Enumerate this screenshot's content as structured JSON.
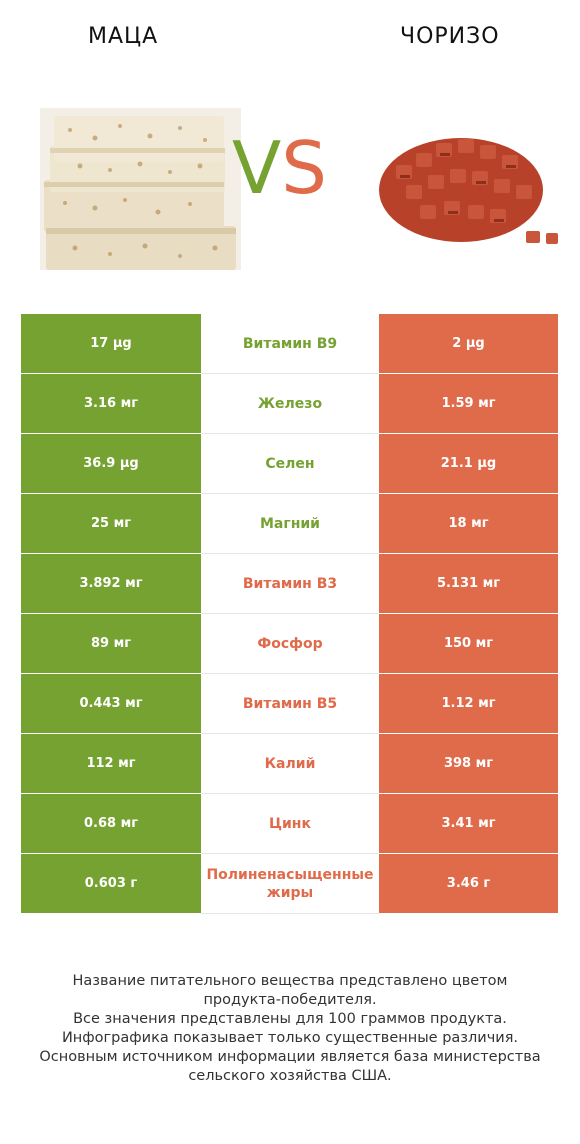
{
  "header": {
    "left_title": "МАЦА",
    "right_title": "ЧОРИЗО",
    "vs_v": "V",
    "vs_s": "S"
  },
  "colors": {
    "winner_left": "#76a232",
    "winner_right": "#e06b4b"
  },
  "rows": [
    {
      "left": "17 µg",
      "nutrient": "Витамин B9",
      "right": "2 µg",
      "winner": "left"
    },
    {
      "left": "3.16 мг",
      "nutrient": "Железо",
      "right": "1.59 мг",
      "winner": "left"
    },
    {
      "left": "36.9 µg",
      "nutrient": "Селен",
      "right": "21.1 µg",
      "winner": "left"
    },
    {
      "left": "25 мг",
      "nutrient": "Магний",
      "right": "18 мг",
      "winner": "left"
    },
    {
      "left": "3.892 мг",
      "nutrient": "Витамин B3",
      "right": "5.131 мг",
      "winner": "right"
    },
    {
      "left": "89 мг",
      "nutrient": "Фосфор",
      "right": "150 мг",
      "winner": "right"
    },
    {
      "left": "0.443 мг",
      "nutrient": "Витамин B5",
      "right": "1.12 мг",
      "winner": "right"
    },
    {
      "left": "112 мг",
      "nutrient": "Калий",
      "right": "398 мг",
      "winner": "right"
    },
    {
      "left": "0.68 мг",
      "nutrient": "Цинк",
      "right": "3.41 мг",
      "winner": "right"
    },
    {
      "left": "0.603 г",
      "nutrient": "Полиненасыщенные жиры",
      "right": "3.46 г",
      "winner": "right"
    }
  ],
  "footer": {
    "line1": "Название питательного вещества представлено цветом",
    "line2": "продукта-победителя.",
    "line3": "Все значения представлены для 100 граммов продукта.",
    "line4": "Инфографика показывает только существенные различия.",
    "line5": "Основным источником информации является база министерства",
    "line6": "сельского хозяйства США."
  }
}
